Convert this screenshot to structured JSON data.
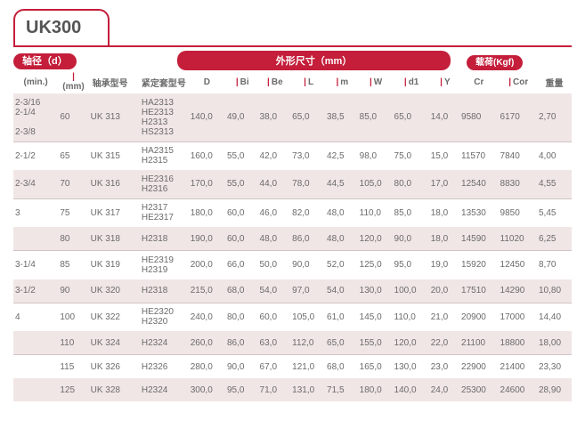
{
  "title": "UK300",
  "header": {
    "shaft_dia": "轴径（d）",
    "min": "(min.)",
    "mm": "(mm)",
    "bearing_model": "轴承型号",
    "sleeve_model": "紧定套型号",
    "outline": "外形尺寸（mm）",
    "load": "载荷(Kgf)",
    "weight": "重量",
    "cols": [
      "D",
      "Bi",
      "Be",
      "L",
      "m",
      "W",
      "d1",
      "Y",
      "Cr",
      "Cor"
    ]
  },
  "rows": [
    {
      "shade": true,
      "min": "2-3/16\n2-1/4\n\n2-3/8",
      "mm": "60",
      "bearing": "UK 313",
      "sleeve": "HA2313\nHE2313\nH2313\nHS2313",
      "v": [
        "140,0",
        "49,0",
        "38,0",
        "65,0",
        "38,5",
        "85,0",
        "65,0",
        "14,0",
        "9580",
        "6170",
        "2,70"
      ]
    },
    {
      "shade": false,
      "divider": true,
      "min": "2-1/2",
      "mm": "65",
      "bearing": "UK 315",
      "sleeve": "HA2315\nH2315",
      "v": [
        "160,0",
        "55,0",
        "42,0",
        "73,0",
        "42,5",
        "98,0",
        "75,0",
        "15,0",
        "11570",
        "7840",
        "4,00"
      ]
    },
    {
      "shade": true,
      "min": "2-3/4",
      "mm": "70",
      "bearing": "UK 316",
      "sleeve": "HE2316\nH2316",
      "v": [
        "170,0",
        "55,0",
        "44,0",
        "78,0",
        "44,5",
        "105,0",
        "80,0",
        "17,0",
        "12540",
        "8830",
        "4,55"
      ]
    },
    {
      "shade": false,
      "divider": true,
      "min": "3",
      "mm": "75",
      "bearing": "UK 317",
      "sleeve": "H2317\nHE2317",
      "v": [
        "180,0",
        "60,0",
        "46,0",
        "82,0",
        "48,0",
        "110,0",
        "85,0",
        "18,0",
        "13530",
        "9850",
        "5,45"
      ]
    },
    {
      "shade": true,
      "min": "",
      "mm": "80",
      "bearing": "UK 318",
      "sleeve": "H2318",
      "v": [
        "190,0",
        "60,0",
        "48,0",
        "86,0",
        "48,0",
        "120,0",
        "90,0",
        "18,0",
        "14590",
        "11020",
        "6,25"
      ]
    },
    {
      "shade": false,
      "divider": true,
      "min": "3-1/4",
      "mm": "85",
      "bearing": "UK 319",
      "sleeve": "HE2319\nH2319",
      "v": [
        "200,0",
        "66,0",
        "50,0",
        "90,0",
        "52,0",
        "125,0",
        "95,0",
        "19,0",
        "15920",
        "12450",
        "8,70"
      ]
    },
    {
      "shade": true,
      "min": "3-1/2",
      "mm": "90",
      "bearing": "UK 320",
      "sleeve": "H2318",
      "v": [
        "215,0",
        "68,0",
        "54,0",
        "97,0",
        "54,0",
        "130,0",
        "100,0",
        "20,0",
        "17510",
        "14290",
        "10,80"
      ]
    },
    {
      "shade": false,
      "divider": true,
      "min": "4",
      "mm": "100",
      "bearing": "UK 322",
      "sleeve": "HE2320\nH2320",
      "v": [
        "240,0",
        "80,0",
        "60,0",
        "105,0",
        "61,0",
        "145,0",
        "110,0",
        "21,0",
        "20900",
        "17000",
        "14,40"
      ]
    },
    {
      "shade": true,
      "min": "",
      "mm": "110",
      "bearing": "UK 324",
      "sleeve": "H2324",
      "v": [
        "260,0",
        "86,0",
        "63,0",
        "112,0",
        "65,0",
        "155,0",
        "120,0",
        "22,0",
        "21100",
        "18800",
        "18,00"
      ]
    },
    {
      "shade": false,
      "divider": true,
      "min": "",
      "mm": "115",
      "bearing": "UK 326",
      "sleeve": "H2326",
      "v": [
        "280,0",
        "90,0",
        "67,0",
        "121,0",
        "68,0",
        "165,0",
        "130,0",
        "23,0",
        "22900",
        "21400",
        "23,30"
      ]
    },
    {
      "shade": true,
      "min": "",
      "mm": "125",
      "bearing": "UK 328",
      "sleeve": "H2324",
      "v": [
        "300,0",
        "95,0",
        "71,0",
        "131,0",
        "71,5",
        "180,0",
        "140,0",
        "24,0",
        "25300",
        "24600",
        "28,90"
      ]
    }
  ],
  "col_widths": [
    "44",
    "30",
    "50",
    "48",
    "36",
    "32",
    "32",
    "34",
    "32",
    "34",
    "36",
    "30",
    "38",
    "38",
    "34"
  ]
}
